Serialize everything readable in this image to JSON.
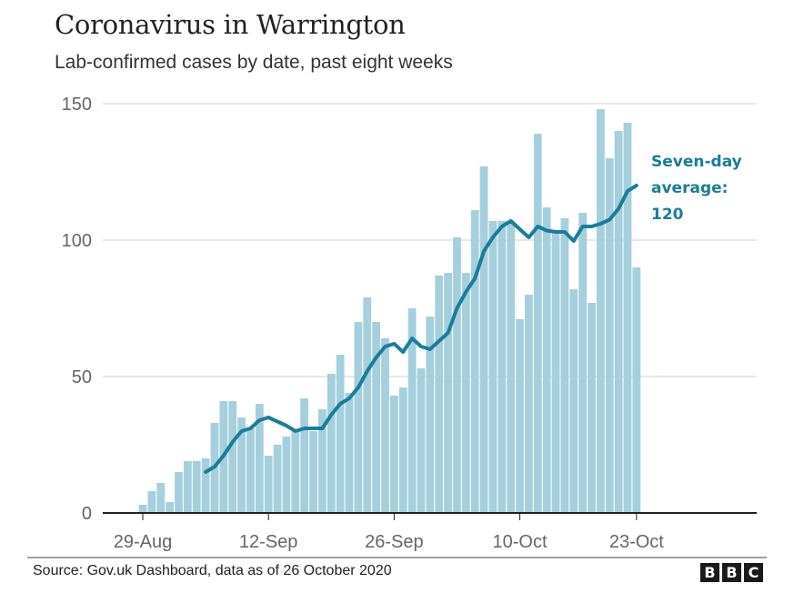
{
  "header": {
    "title": "Coronavirus in Warrington",
    "subtitle": "Lab-confirmed cases by date, past eight weeks"
  },
  "footer": {
    "source": "Source: Gov.uk Dashboard, data as of 26 October 2020",
    "logo_letters": [
      "B",
      "B",
      "C"
    ]
  },
  "colors": {
    "bar": "#a5cfdd",
    "line": "#1a7d99",
    "annotation": "#1a7d99",
    "grid": "#d9d9d9",
    "axis": "#222222"
  },
  "chart_data": {
    "type": "bar",
    "title": "Coronavirus in Warrington",
    "subtitle": "Lab-confirmed cases by date, past eight weeks",
    "xlabel": "",
    "ylabel": "",
    "ylim": [
      0,
      150
    ],
    "yticks": [
      0,
      50,
      100,
      150
    ],
    "grid": true,
    "x_start_date": "29-Aug",
    "x_tick_labels": [
      {
        "label": "29-Aug",
        "day_index": 0
      },
      {
        "label": "12-Sep",
        "day_index": 14
      },
      {
        "label": "26-Sep",
        "day_index": 28
      },
      {
        "label": "10-Oct",
        "day_index": 42
      },
      {
        "label": "23-Oct",
        "day_index": 55
      }
    ],
    "x_range_days": [
      0,
      68
    ],
    "categories": [
      "29-Aug",
      "30-Aug",
      "31-Aug",
      "1-Sep",
      "2-Sep",
      "3-Sep",
      "4-Sep",
      "5-Sep",
      "6-Sep",
      "7-Sep",
      "8-Sep",
      "9-Sep",
      "10-Sep",
      "11-Sep",
      "12-Sep",
      "13-Sep",
      "14-Sep",
      "15-Sep",
      "16-Sep",
      "17-Sep",
      "18-Sep",
      "19-Sep",
      "20-Sep",
      "21-Sep",
      "22-Sep",
      "23-Sep",
      "24-Sep",
      "25-Sep",
      "26-Sep",
      "27-Sep",
      "28-Sep",
      "29-Sep",
      "30-Sep",
      "1-Oct",
      "2-Oct",
      "3-Oct",
      "4-Oct",
      "5-Oct",
      "6-Oct",
      "7-Oct",
      "8-Oct",
      "9-Oct",
      "10-Oct",
      "11-Oct",
      "12-Oct",
      "13-Oct",
      "14-Oct",
      "15-Oct",
      "16-Oct",
      "17-Oct",
      "18-Oct",
      "19-Oct",
      "20-Oct",
      "21-Oct",
      "22-Oct",
      "23-Oct"
    ],
    "series": [
      {
        "name": "Daily cases",
        "type": "bar",
        "values": [
          3,
          8,
          11,
          4,
          15,
          19,
          19,
          20,
          33,
          41,
          41,
          35,
          31,
          40,
          21,
          25,
          28,
          30,
          42,
          30,
          38,
          51,
          58,
          44,
          70,
          79,
          70,
          64,
          43,
          46,
          75,
          53,
          72,
          87,
          88,
          101,
          88,
          111,
          127,
          107,
          107,
          107,
          71,
          80,
          139,
          112,
          103,
          108,
          82,
          110,
          77,
          148,
          130,
          140,
          143,
          90
        ]
      },
      {
        "name": "Seven-day average",
        "type": "line",
        "start_day_index": 7,
        "values": [
          15,
          17,
          21,
          26,
          30,
          31,
          34,
          35,
          33.5,
          32,
          30,
          31,
          31,
          31,
          36,
          40,
          42,
          46,
          52,
          57,
          61,
          62,
          59,
          64,
          61,
          60,
          63,
          66,
          75,
          81,
          86,
          96,
          101,
          105,
          107,
          104,
          101,
          105,
          103.5,
          103,
          103,
          99.7,
          105,
          105,
          106,
          107.5,
          111.5,
          118,
          120
        ]
      }
    ],
    "annotations": [
      {
        "lines": [
          "Seven-day",
          "average:",
          "120"
        ],
        "target": "Seven-day average",
        "position": "right-of-line-end"
      }
    ]
  }
}
